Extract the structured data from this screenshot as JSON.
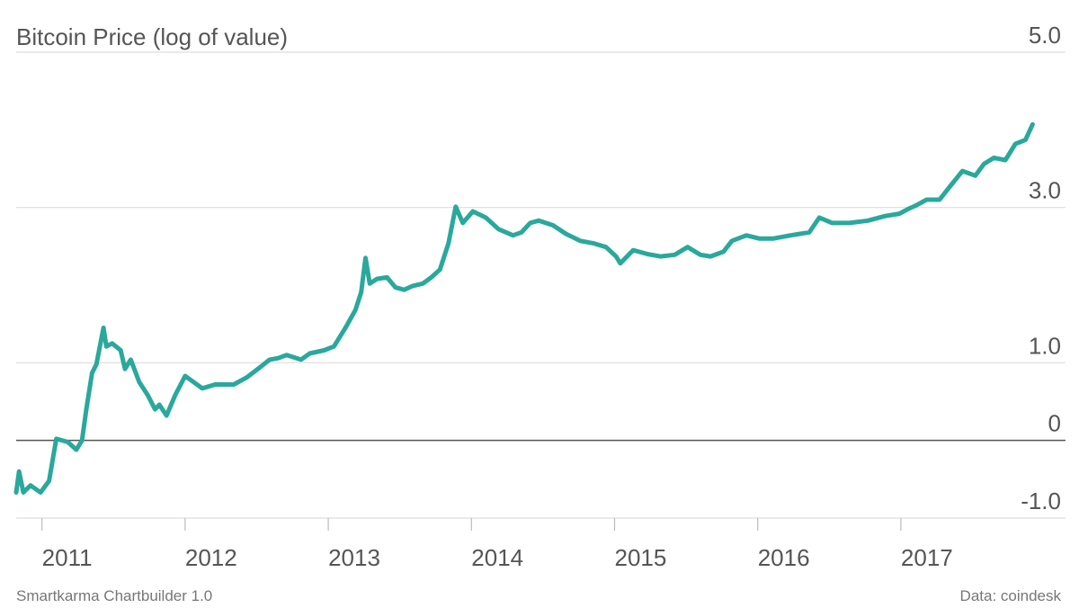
{
  "chart_data": {
    "type": "line",
    "title": "Bitcoin Price (log of value)",
    "credit": "Smartkarma Chartbuilder 1.0",
    "source": "Data: coindesk",
    "xlim": [
      2010.82,
      2018.15
    ],
    "xticks": [
      2011,
      2012,
      2013,
      2014,
      2015,
      2016,
      2017
    ],
    "ylim": [
      -1,
      5
    ],
    "yticks": [
      {
        "value": -1,
        "label": "-1.0"
      },
      0,
      {
        "value": 1,
        "label": "1.0"
      },
      {
        "value": 3,
        "label": "3.0"
      },
      {
        "value": 5,
        "label": "5.0"
      }
    ],
    "grid": true,
    "series": [
      {
        "color": "#2aa89b",
        "x": [
          2010.82,
          2010.84,
          2010.87,
          2010.92,
          2010.99,
          2011.05,
          2011.1,
          2011.18,
          2011.24,
          2011.28,
          2011.31,
          2011.35,
          2011.38,
          2011.43,
          2011.45,
          2011.49,
          2011.55,
          2011.58,
          2011.62,
          2011.68,
          2011.74,
          2011.79,
          2011.82,
          2011.87,
          2011.93,
          2012.0,
          2012.06,
          2012.12,
          2012.21,
          2012.34,
          2012.43,
          2012.53,
          2012.59,
          2012.65,
          2012.71,
          2012.81,
          2012.87,
          2012.97,
          2013.04,
          2013.12,
          2013.19,
          2013.23,
          2013.26,
          2013.29,
          2013.34,
          2013.41,
          2013.47,
          2013.53,
          2013.59,
          2013.66,
          2013.72,
          2013.78,
          2013.84,
          2013.89,
          2013.94,
          2014.01,
          2014.1,
          2014.19,
          2014.29,
          2014.35,
          2014.41,
          2014.47,
          2014.57,
          2014.66,
          2014.76,
          2014.85,
          2014.94,
          2015.01,
          2015.04,
          2015.13,
          2015.23,
          2015.32,
          2015.42,
          2015.51,
          2015.6,
          2015.67,
          2015.76,
          2015.82,
          2015.92,
          2016.01,
          2016.11,
          2016.23,
          2016.36,
          2016.43,
          2016.52,
          2016.64,
          2016.77,
          2016.89,
          2016.99,
          2017.05,
          2017.11,
          2017.18,
          2017.27,
          2017.33,
          2017.43,
          2017.52,
          2017.58,
          2017.65,
          2017.73,
          2017.8,
          2017.87,
          2017.92
        ],
        "values": [
          -0.67,
          -0.4,
          -0.67,
          -0.58,
          -0.67,
          -0.52,
          0.02,
          -0.02,
          -0.12,
          0.0,
          0.4,
          0.87,
          0.98,
          1.45,
          1.21,
          1.25,
          1.16,
          0.92,
          1.04,
          0.75,
          0.58,
          0.4,
          0.46,
          0.32,
          0.58,
          0.83,
          0.75,
          0.67,
          0.72,
          0.72,
          0.81,
          0.95,
          1.04,
          1.06,
          1.1,
          1.04,
          1.12,
          1.16,
          1.21,
          1.45,
          1.68,
          1.91,
          2.35,
          2.02,
          2.08,
          2.1,
          1.97,
          1.94,
          1.99,
          2.02,
          2.1,
          2.2,
          2.54,
          3.01,
          2.8,
          2.95,
          2.87,
          2.72,
          2.64,
          2.68,
          2.8,
          2.83,
          2.77,
          2.66,
          2.57,
          2.54,
          2.49,
          2.37,
          2.28,
          2.45,
          2.4,
          2.37,
          2.39,
          2.49,
          2.39,
          2.37,
          2.43,
          2.57,
          2.64,
          2.6,
          2.6,
          2.64,
          2.68,
          2.87,
          2.8,
          2.8,
          2.83,
          2.89,
          2.92,
          2.98,
          3.03,
          3.1,
          3.1,
          3.24,
          3.47,
          3.41,
          3.56,
          3.64,
          3.61,
          3.82,
          3.87,
          4.07
        ]
      }
    ]
  }
}
